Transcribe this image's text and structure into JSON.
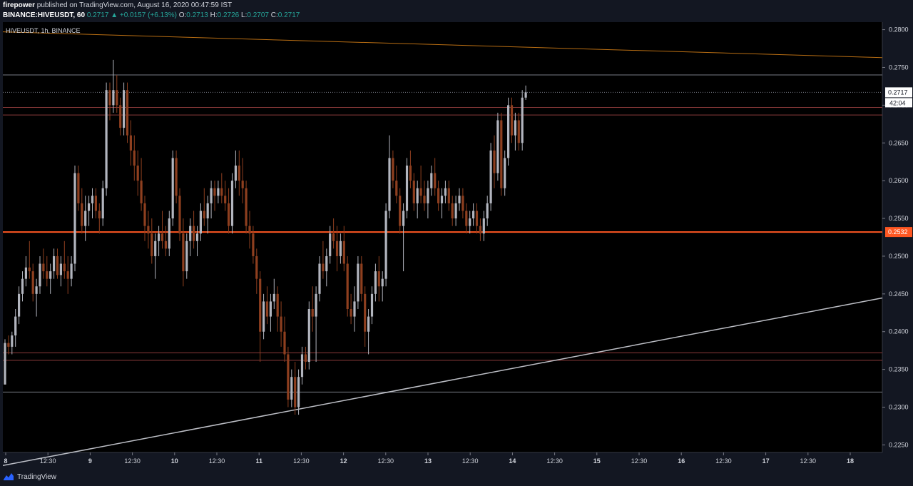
{
  "header": {
    "author": "firepower",
    "published": "published on TradingView.com, August 16, 2020 00:47:59 IST",
    "symbol_interval": "BINANCE:HIVEUSDT, 60",
    "last": "0.2717",
    "change": "+0.0157 (+6.13%)",
    "open_label": "O:",
    "open": "0.2713",
    "high_label": "H:",
    "high": "0.2726",
    "low_label": "L:",
    "low": "0.2707",
    "close_label": "C:",
    "close": "0.2717"
  },
  "legend": "HIVEUSDT, 1h, BINANCE",
  "price_tag": {
    "last": "0.2717",
    "countdown": "42:04",
    "level": "0.2532"
  },
  "footer": {
    "brand": "TradingView"
  },
  "colors": {
    "up": "#b2b5be",
    "down": "#8e3f1f",
    "bg": "#000000",
    "orange": "#f7931a",
    "red_level": "#ff5722",
    "dark_red": "#8b3a3a",
    "grey_line": "#787b86"
  },
  "chart_data": {
    "type": "candlestick",
    "ylim": [
      0.224,
      0.281
    ],
    "y_ticks": [
      "0.2800",
      "0.2750",
      "0.2700",
      "0.2650",
      "0.2600",
      "0.2550",
      "0.2500",
      "0.2450",
      "0.2400",
      "0.2350",
      "0.2300",
      "0.2250"
    ],
    "x_ticks": [
      "8",
      "12:30",
      "9",
      "12:30",
      "10",
      "12:30",
      "11",
      "12:30",
      "12",
      "12:30",
      "13",
      "12:30",
      "14",
      "12:30",
      "15",
      "12:30",
      "16",
      "12:30",
      "17",
      "12:30",
      "18"
    ],
    "candles": [
      [
        0.233,
        0.239,
        0.233,
        0.2385
      ],
      [
        0.2385,
        0.2395,
        0.237,
        0.238
      ],
      [
        0.238,
        0.24,
        0.237,
        0.2395
      ],
      [
        0.2395,
        0.243,
        0.238,
        0.242
      ],
      [
        0.242,
        0.246,
        0.241,
        0.245
      ],
      [
        0.245,
        0.248,
        0.244,
        0.247
      ],
      [
        0.247,
        0.25,
        0.246,
        0.2485
      ],
      [
        0.2485,
        0.252,
        0.247,
        0.248
      ],
      [
        0.248,
        0.249,
        0.244,
        0.245
      ],
      [
        0.245,
        0.247,
        0.242,
        0.246
      ],
      [
        0.246,
        0.25,
        0.245,
        0.249
      ],
      [
        0.249,
        0.251,
        0.247,
        0.248
      ],
      [
        0.248,
        0.25,
        0.246,
        0.247
      ],
      [
        0.247,
        0.249,
        0.245,
        0.248
      ],
      [
        0.248,
        0.251,
        0.247,
        0.25
      ],
      [
        0.25,
        0.251,
        0.247,
        0.2475
      ],
      [
        0.2475,
        0.25,
        0.246,
        0.249
      ],
      [
        0.249,
        0.252,
        0.247,
        0.248
      ],
      [
        0.248,
        0.25,
        0.245,
        0.247
      ],
      [
        0.247,
        0.25,
        0.246,
        0.249
      ],
      [
        0.249,
        0.262,
        0.248,
        0.261
      ],
      [
        0.261,
        0.262,
        0.256,
        0.257
      ],
      [
        0.257,
        0.259,
        0.253,
        0.254
      ],
      [
        0.254,
        0.258,
        0.252,
        0.256
      ],
      [
        0.256,
        0.258,
        0.254,
        0.257
      ],
      [
        0.257,
        0.259,
        0.255,
        0.258
      ],
      [
        0.258,
        0.259,
        0.255,
        0.256
      ],
      [
        0.256,
        0.257,
        0.253,
        0.255
      ],
      [
        0.255,
        0.26,
        0.254,
        0.259
      ],
      [
        0.259,
        0.273,
        0.258,
        0.272
      ],
      [
        0.272,
        0.273,
        0.268,
        0.27
      ],
      [
        0.27,
        0.276,
        0.269,
        0.272
      ],
      [
        0.272,
        0.274,
        0.269,
        0.27
      ],
      [
        0.27,
        0.271,
        0.266,
        0.267
      ],
      [
        0.267,
        0.273,
        0.266,
        0.272
      ],
      [
        0.272,
        0.273,
        0.265,
        0.266
      ],
      [
        0.266,
        0.268,
        0.262,
        0.264
      ],
      [
        0.264,
        0.266,
        0.26,
        0.262
      ],
      [
        0.262,
        0.264,
        0.258,
        0.26
      ],
      [
        0.26,
        0.263,
        0.256,
        0.257
      ],
      [
        0.257,
        0.258,
        0.252,
        0.254
      ],
      [
        0.254,
        0.256,
        0.251,
        0.253
      ],
      [
        0.253,
        0.255,
        0.249,
        0.25
      ],
      [
        0.25,
        0.253,
        0.247,
        0.252
      ],
      [
        0.252,
        0.254,
        0.25,
        0.253
      ],
      [
        0.253,
        0.256,
        0.251,
        0.252
      ],
      [
        0.252,
        0.254,
        0.25,
        0.251
      ],
      [
        0.251,
        0.256,
        0.25,
        0.255
      ],
      [
        0.255,
        0.264,
        0.254,
        0.263
      ],
      [
        0.263,
        0.264,
        0.257,
        0.258
      ],
      [
        0.258,
        0.259,
        0.252,
        0.253
      ],
      [
        0.253,
        0.255,
        0.246,
        0.248
      ],
      [
        0.248,
        0.253,
        0.247,
        0.252
      ],
      [
        0.252,
        0.255,
        0.25,
        0.254
      ],
      [
        0.254,
        0.256,
        0.251,
        0.252
      ],
      [
        0.252,
        0.254,
        0.25,
        0.253
      ],
      [
        0.253,
        0.257,
        0.252,
        0.256
      ],
      [
        0.256,
        0.259,
        0.254,
        0.255
      ],
      [
        0.255,
        0.258,
        0.253,
        0.257
      ],
      [
        0.257,
        0.26,
        0.255,
        0.259
      ],
      [
        0.259,
        0.26,
        0.256,
        0.258
      ],
      [
        0.258,
        0.26,
        0.257,
        0.259
      ],
      [
        0.259,
        0.261,
        0.257,
        0.258
      ],
      [
        0.258,
        0.26,
        0.256,
        0.257
      ],
      [
        0.257,
        0.259,
        0.253,
        0.254
      ],
      [
        0.254,
        0.261,
        0.253,
        0.26
      ],
      [
        0.26,
        0.264,
        0.259,
        0.262
      ],
      [
        0.262,
        0.264,
        0.258,
        0.26
      ],
      [
        0.26,
        0.263,
        0.257,
        0.259
      ],
      [
        0.259,
        0.26,
        0.253,
        0.254
      ],
      [
        0.254,
        0.256,
        0.251,
        0.253
      ],
      [
        0.253,
        0.254,
        0.249,
        0.25
      ],
      [
        0.25,
        0.251,
        0.245,
        0.247
      ],
      [
        0.247,
        0.248,
        0.236,
        0.24
      ],
      [
        0.24,
        0.245,
        0.239,
        0.244
      ],
      [
        0.244,
        0.246,
        0.241,
        0.242
      ],
      [
        0.242,
        0.245,
        0.24,
        0.244
      ],
      [
        0.244,
        0.247,
        0.243,
        0.245
      ],
      [
        0.245,
        0.246,
        0.24,
        0.242
      ],
      [
        0.242,
        0.244,
        0.238,
        0.24
      ],
      [
        0.24,
        0.242,
        0.236,
        0.237
      ],
      [
        0.237,
        0.238,
        0.23,
        0.231
      ],
      [
        0.231,
        0.235,
        0.23,
        0.234
      ],
      [
        0.234,
        0.236,
        0.229,
        0.23
      ],
      [
        0.23,
        0.235,
        0.229,
        0.234
      ],
      [
        0.234,
        0.238,
        0.233,
        0.237
      ],
      [
        0.237,
        0.238,
        0.235,
        0.236
      ],
      [
        0.236,
        0.244,
        0.235,
        0.243
      ],
      [
        0.243,
        0.246,
        0.24,
        0.242
      ],
      [
        0.242,
        0.246,
        0.236,
        0.245
      ],
      [
        0.245,
        0.25,
        0.244,
        0.249
      ],
      [
        0.249,
        0.252,
        0.247,
        0.248
      ],
      [
        0.248,
        0.251,
        0.246,
        0.25
      ],
      [
        0.25,
        0.254,
        0.249,
        0.253
      ],
      [
        0.253,
        0.255,
        0.251,
        0.252
      ],
      [
        0.252,
        0.254,
        0.248,
        0.25
      ],
      [
        0.25,
        0.253,
        0.249,
        0.252
      ],
      [
        0.252,
        0.254,
        0.248,
        0.249
      ],
      [
        0.249,
        0.25,
        0.242,
        0.243
      ],
      [
        0.243,
        0.245,
        0.241,
        0.242
      ],
      [
        0.242,
        0.246,
        0.24,
        0.244
      ],
      [
        0.244,
        0.25,
        0.243,
        0.249
      ],
      [
        0.249,
        0.25,
        0.244,
        0.245
      ],
      [
        0.245,
        0.246,
        0.238,
        0.24
      ],
      [
        0.24,
        0.243,
        0.237,
        0.242
      ],
      [
        0.242,
        0.246,
        0.241,
        0.245
      ],
      [
        0.245,
        0.249,
        0.244,
        0.248
      ],
      [
        0.248,
        0.25,
        0.244,
        0.246
      ],
      [
        0.246,
        0.248,
        0.244,
        0.247
      ],
      [
        0.247,
        0.257,
        0.246,
        0.256
      ],
      [
        0.256,
        0.266,
        0.255,
        0.263
      ],
      [
        0.263,
        0.264,
        0.259,
        0.26
      ],
      [
        0.26,
        0.262,
        0.257,
        0.258
      ],
      [
        0.258,
        0.259,
        0.253,
        0.254
      ],
      [
        0.254,
        0.257,
        0.248,
        0.256
      ],
      [
        0.256,
        0.263,
        0.255,
        0.262
      ],
      [
        0.262,
        0.264,
        0.259,
        0.26
      ],
      [
        0.26,
        0.261,
        0.256,
        0.257
      ],
      [
        0.257,
        0.26,
        0.255,
        0.259
      ],
      [
        0.259,
        0.262,
        0.257,
        0.258
      ],
      [
        0.258,
        0.26,
        0.256,
        0.257
      ],
      [
        0.257,
        0.26,
        0.255,
        0.259
      ],
      [
        0.259,
        0.262,
        0.258,
        0.261
      ],
      [
        0.261,
        0.263,
        0.258,
        0.259
      ],
      [
        0.259,
        0.26,
        0.256,
        0.257
      ],
      [
        0.257,
        0.259,
        0.255,
        0.258
      ],
      [
        0.258,
        0.26,
        0.257,
        0.259
      ],
      [
        0.259,
        0.26,
        0.256,
        0.257
      ],
      [
        0.257,
        0.258,
        0.254,
        0.255
      ],
      [
        0.255,
        0.258,
        0.254,
        0.257
      ],
      [
        0.257,
        0.259,
        0.256,
        0.258
      ],
      [
        0.258,
        0.259,
        0.255,
        0.256
      ],
      [
        0.256,
        0.257,
        0.253,
        0.254
      ],
      [
        0.254,
        0.256,
        0.253,
        0.255
      ],
      [
        0.255,
        0.257,
        0.254,
        0.256
      ],
      [
        0.256,
        0.257,
        0.253,
        0.254
      ],
      [
        0.254,
        0.255,
        0.252,
        0.253
      ],
      [
        0.253,
        0.256,
        0.252,
        0.255
      ],
      [
        0.255,
        0.258,
        0.254,
        0.257
      ],
      [
        0.257,
        0.265,
        0.256,
        0.264
      ],
      [
        0.264,
        0.266,
        0.259,
        0.261
      ],
      [
        0.261,
        0.269,
        0.26,
        0.268
      ],
      [
        0.268,
        0.269,
        0.258,
        0.259
      ],
      [
        0.259,
        0.264,
        0.258,
        0.263
      ],
      [
        0.263,
        0.271,
        0.262,
        0.27
      ],
      [
        0.27,
        0.271,
        0.265,
        0.266
      ],
      [
        0.266,
        0.269,
        0.264,
        0.268
      ],
      [
        0.268,
        0.269,
        0.264,
        0.265
      ],
      [
        0.265,
        0.272,
        0.264,
        0.271
      ],
      [
        0.271,
        0.2726,
        0.2707,
        0.2717
      ]
    ],
    "levels": [
      {
        "value": 0.274,
        "kind": "grey-line"
      },
      {
        "value": 0.2717,
        "kind": "last-price-dotted"
      },
      {
        "value": 0.2697,
        "kind": "dark-red-line"
      },
      {
        "value": 0.2687,
        "kind": "dark-red-line"
      },
      {
        "value": 0.2532,
        "kind": "red-level"
      },
      {
        "value": 0.2372,
        "kind": "dark-red-line"
      },
      {
        "value": 0.2362,
        "kind": "dark-red-line"
      },
      {
        "value": 0.232,
        "kind": "grey-line"
      }
    ],
    "trendlines": [
      {
        "kind": "orange",
        "from": [
          0,
          0.2797
        ],
        "to": [
          214,
          0.2768
        ]
      },
      {
        "kind": "support",
        "from": [
          19,
          0.224
        ],
        "to": [
          214,
          0.2412
        ]
      }
    ],
    "grid": false,
    "legend_position": "top-left"
  }
}
